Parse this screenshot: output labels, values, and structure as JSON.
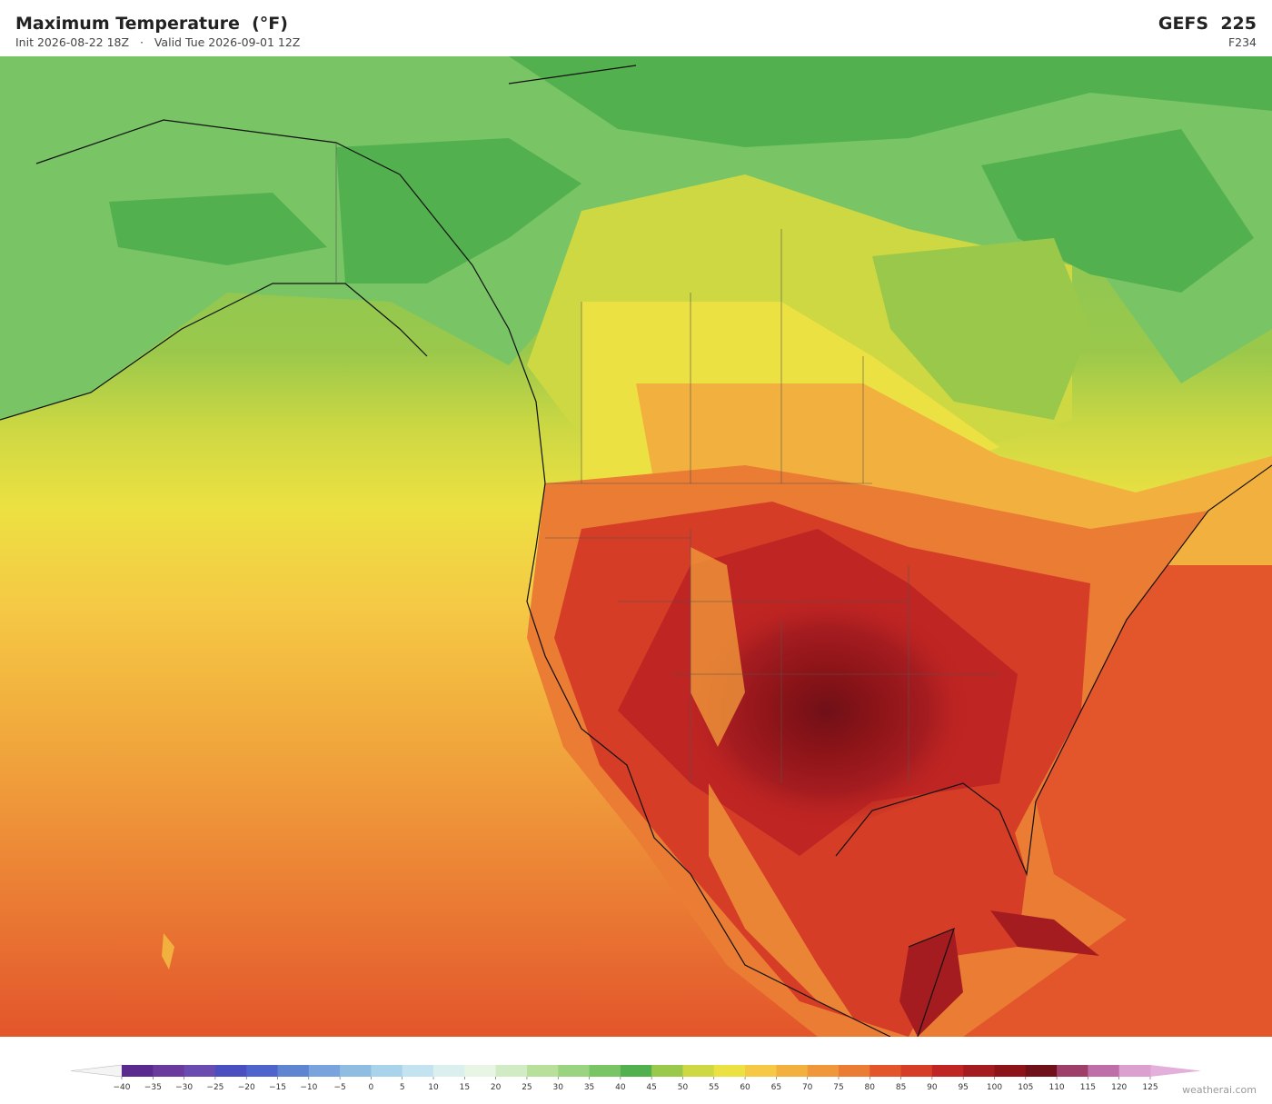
{
  "header": {
    "title": "Maximum Temperature  (°F)",
    "subtitle": "Init 2026-08-22 18Z   ·   Valid Tue 2026-09-01 12Z",
    "model": "GEFS  225",
    "forecast_hour": "F234"
  },
  "colorbar": {
    "ticks": [
      {
        "value": -40,
        "label": "−40"
      },
      {
        "value": -35,
        "label": "−35"
      },
      {
        "value": -30,
        "label": "−30"
      },
      {
        "value": -25,
        "label": "−25"
      },
      {
        "value": -20,
        "label": "−20"
      },
      {
        "value": -15,
        "label": "−15"
      },
      {
        "value": -10,
        "label": "−10"
      },
      {
        "value": -5,
        "label": "−5"
      },
      0,
      5,
      10,
      15,
      20,
      25,
      30,
      35,
      40,
      45,
      50,
      55,
      60,
      65,
      70,
      75,
      80,
      85,
      90,
      95,
      100,
      105,
      110,
      115,
      120,
      125
    ],
    "colors": [
      "#5b2a8f",
      "#6a3a9d",
      "#6a4cb0",
      "#4a4fc0",
      "#4f63cc",
      "#5f84d0",
      "#79a3dc",
      "#8fbde2",
      "#a8d3eb",
      "#c4e3f0",
      "#dcefef",
      "#e8f5e4",
      "#d1ebc4",
      "#b8e09a",
      "#9ad480",
      "#79c465",
      "#52b04e",
      "#9ac84b",
      "#cdd843",
      "#ece142",
      "#f5c945",
      "#f2b13e",
      "#ef973a",
      "#ea7c34",
      "#e3552b",
      "#d53d27",
      "#bf2522",
      "#a51c20",
      "#8c1418",
      "#701018",
      "#9e3f6a",
      "#bf6fa7",
      "#dca0d0"
    ],
    "under_color": "#f4f4f4",
    "over_color": "#e2b0da"
  },
  "footer": {
    "watermark": "weatherai.com"
  }
}
